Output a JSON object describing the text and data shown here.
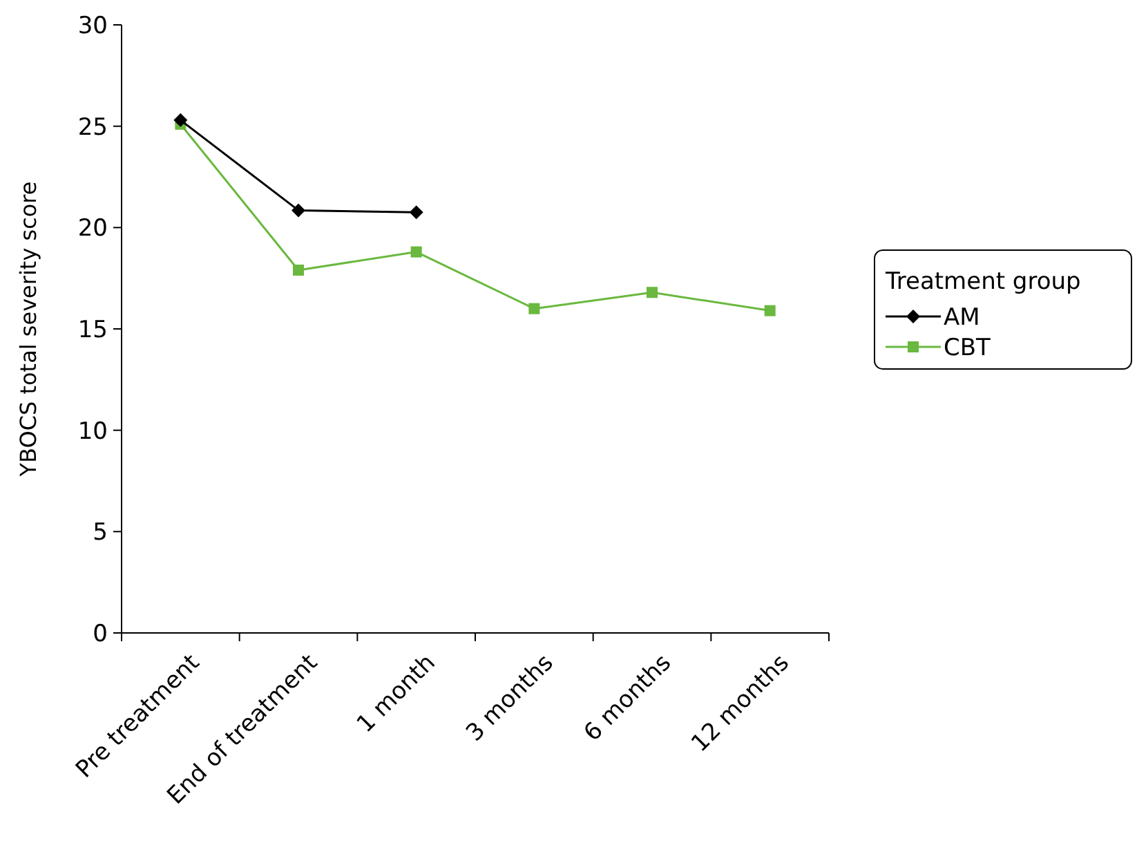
{
  "chart_data": {
    "type": "line",
    "ylabel": "YBOCS total severity score",
    "legend_title": "Treatment group",
    "legend": "right",
    "categories": [
      "Pre treatment",
      "End of treatment",
      "1 month",
      "3 months",
      "6 months",
      "12 months"
    ],
    "ylim": [
      0,
      30
    ],
    "yticks": [
      0,
      5,
      10,
      15,
      20,
      25,
      30
    ],
    "grid": false,
    "series": [
      {
        "name": "AM",
        "color": "#000000",
        "marker": "diamond",
        "values": [
          25.3,
          20.85,
          20.75,
          null,
          null,
          null
        ]
      },
      {
        "name": "CBT",
        "color": "#6ab83f",
        "marker": "square",
        "values": [
          25.1,
          17.9,
          18.8,
          16.0,
          16.8,
          15.9
        ]
      }
    ]
  }
}
